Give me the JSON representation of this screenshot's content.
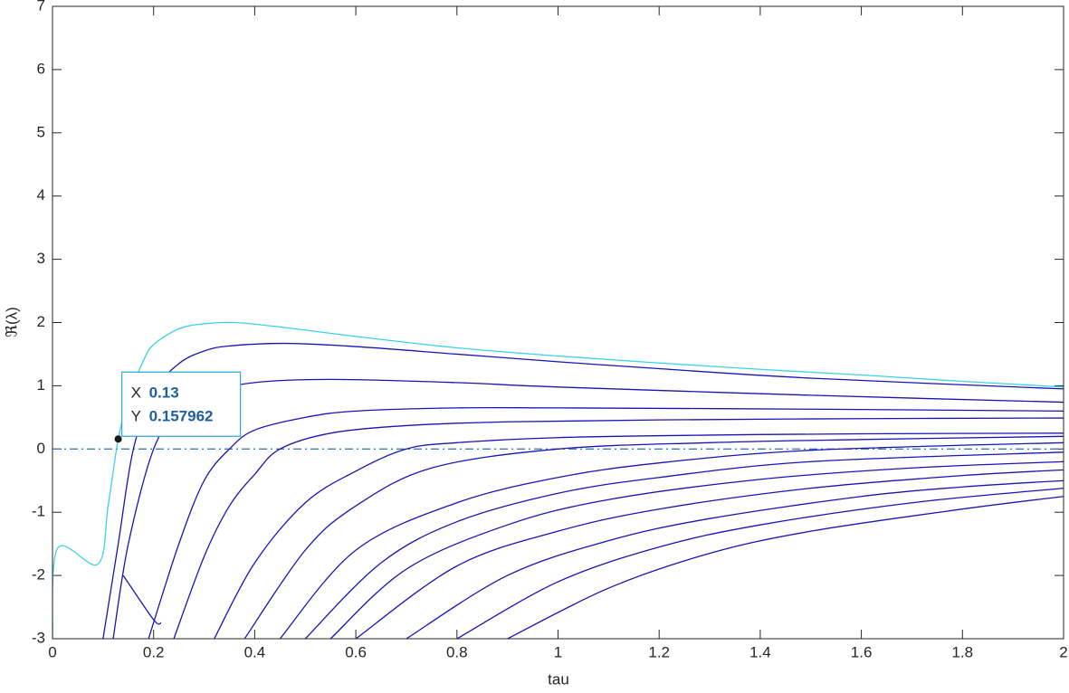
{
  "chart_data": {
    "type": "line",
    "xlabel": "tau",
    "ylabel": "ℜ(λ)",
    "xlim": [
      0,
      2
    ],
    "ylim": [
      -3,
      7
    ],
    "xticks": [
      0,
      0.2,
      0.4,
      0.6,
      0.8,
      1,
      1.2,
      1.4,
      1.6,
      1.8,
      2
    ],
    "yticks": [
      -3,
      -2,
      -1,
      0,
      1,
      2,
      3,
      4,
      5,
      6,
      7
    ],
    "reference_line": 0,
    "reference_color": "#3d7fc0",
    "datatip": {
      "x_label": "X",
      "x": 0.13,
      "y_label": "Y",
      "y": 0.157962
    },
    "series": [
      {
        "color": "#3cd2e6",
        "x": [
          0,
          0.01,
          0.09,
          0.11,
          0.13,
          0.15,
          0.18,
          0.2,
          0.25,
          0.3,
          0.36,
          0.45,
          0.6,
          0.8,
          1.0,
          1.2,
          1.4,
          1.6,
          1.8,
          2.0
        ],
        "values": [
          -3,
          -1.57,
          -1.82,
          -0.9,
          0.158,
          0.8,
          1.4,
          1.65,
          1.9,
          1.98,
          2.0,
          1.93,
          1.78,
          1.6,
          1.47,
          1.36,
          1.26,
          1.17,
          1.07,
          0.98
        ]
      },
      {
        "color": "#1a14b4",
        "x": [
          0.1,
          0.13,
          0.16,
          0.2,
          0.25,
          0.3,
          0.35,
          0.46,
          0.6,
          0.8,
          1.0,
          1.2,
          1.5,
          2.0
        ],
        "values": [
          -3,
          -1.5,
          0,
          0.9,
          1.35,
          1.55,
          1.63,
          1.67,
          1.62,
          1.5,
          1.38,
          1.27,
          1.12,
          0.95
        ]
      },
      {
        "color": "#1a14b4",
        "x": [
          0.12,
          0.15,
          0.2,
          0.25,
          0.3,
          0.4,
          0.55,
          0.8,
          1.0,
          1.5,
          2.0
        ],
        "values": [
          -3,
          -1.5,
          0,
          0.6,
          0.88,
          1.05,
          1.1,
          1.05,
          0.98,
          0.85,
          0.74
        ]
      },
      {
        "color": "#1a14b4",
        "x": [
          0.19,
          0.25,
          0.3,
          0.35,
          0.4,
          0.5,
          0.6,
          0.8,
          1.0,
          1.5,
          2.0
        ],
        "values": [
          -3,
          -1.5,
          -0.5,
          0,
          0.3,
          0.5,
          0.6,
          0.65,
          0.65,
          0.63,
          0.6
        ]
      },
      {
        "color": "#1a14b4",
        "x": [
          0.24,
          0.3,
          0.35,
          0.4,
          0.45,
          0.55,
          0.7,
          0.9,
          1.2,
          1.6,
          2.0
        ],
        "values": [
          -3,
          -1.7,
          -0.9,
          -0.4,
          0,
          0.25,
          0.37,
          0.43,
          0.46,
          0.48,
          0.49
        ]
      },
      {
        "color": "#1a14b4",
        "x": [
          0.32,
          0.4,
          0.5,
          0.6,
          0.7,
          0.8,
          1.0,
          1.3,
          1.6,
          2.0
        ],
        "values": [
          -3,
          -1.8,
          -0.85,
          -0.35,
          0,
          0.1,
          0.18,
          0.22,
          0.24,
          0.25
        ]
      },
      {
        "color": "#1a14b4",
        "x": [
          0.38,
          0.5,
          0.6,
          0.75,
          1.0,
          1.3,
          1.6,
          2.0
        ],
        "values": [
          -3,
          -1.6,
          -0.9,
          -0.3,
          0,
          0.1,
          0.15,
          0.2
        ]
      },
      {
        "color": "#1a14b4",
        "x": [
          0.45,
          0.6,
          0.8,
          1.0,
          1.2,
          1.5,
          2.0
        ],
        "values": [
          -3,
          -1.6,
          -0.85,
          -0.45,
          -0.22,
          -0.02,
          0.1
        ]
      },
      {
        "color": "#1a14b4",
        "x": [
          0.5,
          0.65,
          0.8,
          1.0,
          1.2,
          1.5,
          2.0
        ],
        "values": [
          -3,
          -1.8,
          -1.15,
          -0.7,
          -0.45,
          -0.2,
          -0.05
        ]
      },
      {
        "color": "#1a14b4",
        "x": [
          0.55,
          0.7,
          0.9,
          1.1,
          1.4,
          1.7,
          2.0
        ],
        "values": [
          -3,
          -1.9,
          -1.2,
          -0.8,
          -0.48,
          -0.3,
          -0.2
        ]
      },
      {
        "color": "#1a14b4",
        "x": [
          0.6,
          0.8,
          1.0,
          1.2,
          1.5,
          1.8,
          2.0
        ],
        "values": [
          -3,
          -1.85,
          -1.3,
          -0.95,
          -0.62,
          -0.42,
          -0.33
        ]
      },
      {
        "color": "#1a14b4",
        "x": [
          0.7,
          0.9,
          1.1,
          1.3,
          1.6,
          1.8,
          2.0
        ],
        "values": [
          -3,
          -2.0,
          -1.45,
          -1.1,
          -0.75,
          -0.6,
          -0.5
        ]
      },
      {
        "color": "#1a14b4",
        "x": [
          0.8,
          1.0,
          1.2,
          1.4,
          1.7,
          2.0
        ],
        "values": [
          -3,
          -2.1,
          -1.55,
          -1.2,
          -0.85,
          -0.62
        ]
      },
      {
        "color": "#1a14b4",
        "x": [
          0.9,
          1.1,
          1.3,
          1.5,
          1.8,
          2.0
        ],
        "values": [
          -3,
          -2.2,
          -1.65,
          -1.3,
          -0.95,
          -0.75
        ]
      },
      {
        "color": "#1a14b4",
        "x": [
          0.14,
          0.2,
          0.215
        ],
        "values": [
          -2.0,
          -2.7,
          -2.75
        ]
      }
    ]
  }
}
